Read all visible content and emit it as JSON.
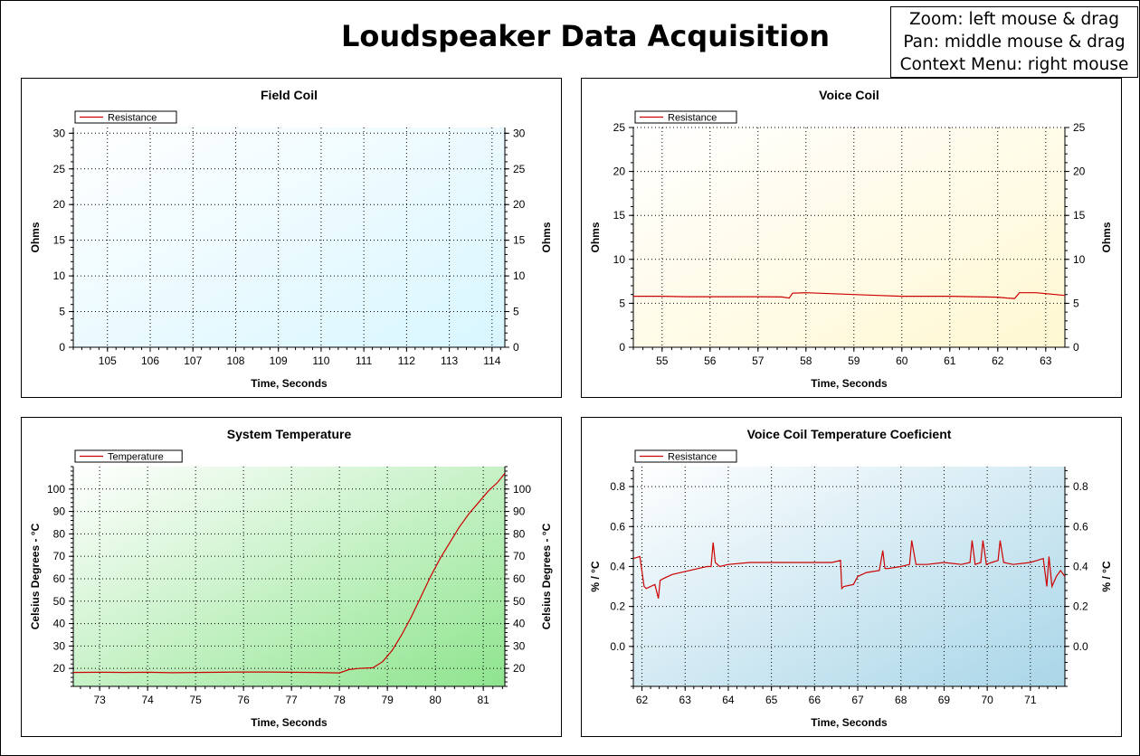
{
  "page": {
    "title": "Loudspeaker Data Acquisition",
    "help_lines": [
      "Zoom: left mouse & drag",
      "Pan: middle mouse & drag",
      "Context Menu: right mouse"
    ]
  },
  "chart_data": [
    {
      "id": "field-coil",
      "type": "line",
      "title": "Field Coil",
      "xlabel": "Time, Seconds",
      "ylabel": "Ohms",
      "y2label": "Ohms",
      "xlim": [
        104.2,
        114.3
      ],
      "ylim": [
        0,
        30.8
      ],
      "xticks": [
        105,
        106,
        107,
        108,
        109,
        110,
        111,
        112,
        113,
        114
      ],
      "yticks": [
        0,
        5,
        10,
        15,
        20,
        25,
        30
      ],
      "grid": true,
      "legend": "top-left",
      "background": [
        "#ffffff",
        "#d8f6ff"
      ],
      "series": [
        {
          "name": "Resistance",
          "color": "#cc0000",
          "x": [],
          "y": []
        }
      ]
    },
    {
      "id": "voice-coil",
      "type": "line",
      "title": "Voice Coil",
      "xlabel": "Time, Seconds",
      "ylabel": "Ohms",
      "y2label": "Ohms",
      "xlim": [
        54.4,
        63.4
      ],
      "ylim": [
        0,
        25
      ],
      "xticks": [
        55,
        56,
        57,
        58,
        59,
        60,
        61,
        62,
        63
      ],
      "yticks": [
        0,
        5,
        10,
        15,
        20,
        25
      ],
      "grid": true,
      "legend": "top-left",
      "background": [
        "#ffffff",
        "#fff8d2"
      ],
      "series": [
        {
          "name": "Resistance",
          "color": "#cc0000",
          "x": [
            54.4,
            55.0,
            55.5,
            56.0,
            56.5,
            57.0,
            57.5,
            57.65,
            57.72,
            58.0,
            58.5,
            59.0,
            59.5,
            60.0,
            60.5,
            61.0,
            61.5,
            62.0,
            62.2,
            62.35,
            62.45,
            62.8,
            63.1,
            63.4
          ],
          "y": [
            5.8,
            5.8,
            5.75,
            5.75,
            5.75,
            5.75,
            5.72,
            5.6,
            6.15,
            6.2,
            6.1,
            6.0,
            5.9,
            5.8,
            5.8,
            5.8,
            5.75,
            5.7,
            5.6,
            5.55,
            6.2,
            6.2,
            6.05,
            5.9
          ]
        }
      ]
    },
    {
      "id": "system-temperature",
      "type": "line",
      "title": "System Temperature",
      "xlabel": "Time, Seconds",
      "ylabel": "Celsius Degrees - °C",
      "y2label": "Celsius Degrees - °C",
      "xlim": [
        72.45,
        81.45
      ],
      "ylim": [
        12,
        110
      ],
      "xticks": [
        73,
        74,
        75,
        76,
        77,
        78,
        79,
        80,
        81
      ],
      "yticks": [
        20,
        30,
        40,
        50,
        60,
        70,
        80,
        90,
        100
      ],
      "grid": true,
      "legend": "top-left",
      "background": [
        "#ffffff",
        "#8ee48e"
      ],
      "series": [
        {
          "name": "Temperature",
          "color": "#cc0000",
          "x": [
            72.45,
            73.0,
            73.5,
            74.0,
            74.5,
            75.0,
            75.5,
            76.0,
            76.5,
            77.0,
            77.5,
            78.0,
            78.2,
            78.4,
            78.7,
            78.9,
            79.1,
            79.3,
            79.5,
            79.7,
            79.9,
            80.1,
            80.3,
            80.5,
            80.7,
            80.9,
            81.1,
            81.3,
            81.45
          ],
          "y": [
            18.2,
            18.3,
            18.2,
            18.3,
            18.1,
            18.2,
            18.3,
            18.4,
            18.4,
            18.3,
            18.2,
            18.0,
            19.5,
            20.0,
            20.3,
            23,
            28,
            35,
            43,
            52,
            61,
            69,
            76,
            83,
            89,
            94,
            99,
            103,
            107
          ]
        }
      ]
    },
    {
      "id": "voice-coil-temp-coef",
      "type": "line",
      "title": "Voice Coil Temperature Coeficient",
      "xlabel": "Time, Seconds",
      "ylabel": "% / °C",
      "y2label": "% / °C",
      "xlim": [
        61.8,
        71.8
      ],
      "ylim": [
        -0.2,
        0.9
      ],
      "xticks": [
        62,
        63,
        64,
        65,
        66,
        67,
        68,
        69,
        70,
        71
      ],
      "yticks": [
        0.0,
        0.2,
        0.4,
        0.6,
        0.8
      ],
      "ytick_labels": [
        "0.0",
        "0.2",
        "0.4",
        "0.6",
        "0.8"
      ],
      "grid": true,
      "legend": "top-left",
      "background": [
        "#ffffff",
        "#a9d6e8"
      ],
      "series": [
        {
          "name": "Resistance",
          "color": "#cc0000",
          "x": [
            61.8,
            61.95,
            62.05,
            62.1,
            62.3,
            62.38,
            62.42,
            62.5,
            62.7,
            62.9,
            63.1,
            63.3,
            63.5,
            63.6,
            63.65,
            63.7,
            63.8,
            64.0,
            64.5,
            65.0,
            65.5,
            66.0,
            66.4,
            66.6,
            66.63,
            66.68,
            66.9,
            67.0,
            67.2,
            67.5,
            67.58,
            67.63,
            67.7,
            68.0,
            68.2,
            68.25,
            68.35,
            68.6,
            69.0,
            69.4,
            69.6,
            69.65,
            69.72,
            69.85,
            69.9,
            69.98,
            70.1,
            70.25,
            70.3,
            70.38,
            70.6,
            71.0,
            71.3,
            71.38,
            71.43,
            71.5,
            71.6,
            71.7,
            71.8
          ],
          "y": [
            0.44,
            0.45,
            0.3,
            0.29,
            0.31,
            0.24,
            0.33,
            0.34,
            0.36,
            0.37,
            0.38,
            0.39,
            0.4,
            0.4,
            0.52,
            0.42,
            0.4,
            0.41,
            0.42,
            0.42,
            0.42,
            0.42,
            0.42,
            0.43,
            0.29,
            0.3,
            0.31,
            0.35,
            0.37,
            0.38,
            0.48,
            0.39,
            0.39,
            0.4,
            0.41,
            0.53,
            0.41,
            0.41,
            0.42,
            0.41,
            0.42,
            0.53,
            0.41,
            0.42,
            0.53,
            0.41,
            0.42,
            0.43,
            0.53,
            0.42,
            0.41,
            0.42,
            0.44,
            0.3,
            0.45,
            0.3,
            0.35,
            0.38,
            0.35
          ]
        }
      ]
    }
  ]
}
